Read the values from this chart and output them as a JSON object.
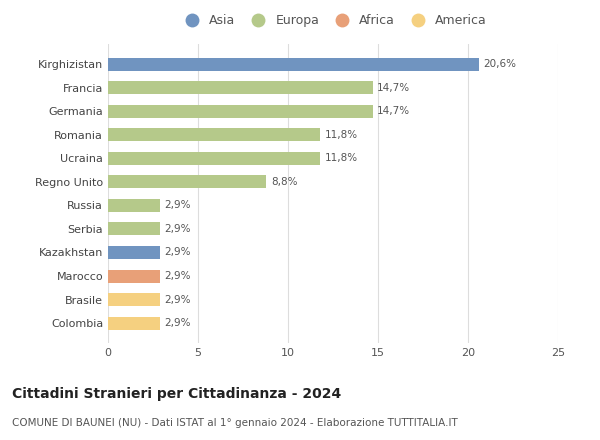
{
  "countries": [
    "Kirghizistan",
    "Francia",
    "Germania",
    "Romania",
    "Ucraina",
    "Regno Unito",
    "Russia",
    "Serbia",
    "Kazakhstan",
    "Marocco",
    "Brasile",
    "Colombia"
  ],
  "values": [
    20.6,
    14.7,
    14.7,
    11.8,
    11.8,
    8.8,
    2.9,
    2.9,
    2.9,
    2.9,
    2.9,
    2.9
  ],
  "labels": [
    "20,6%",
    "14,7%",
    "14,7%",
    "11,8%",
    "11,8%",
    "8,8%",
    "2,9%",
    "2,9%",
    "2,9%",
    "2,9%",
    "2,9%",
    "2,9%"
  ],
  "continents": [
    "Asia",
    "Europa",
    "Europa",
    "Europa",
    "Europa",
    "Europa",
    "Europa",
    "Europa",
    "Asia",
    "Africa",
    "America",
    "America"
  ],
  "colors": {
    "Asia": "#7094c0",
    "Europa": "#b5c98a",
    "Africa": "#e8a078",
    "America": "#f5d080"
  },
  "legend_order": [
    "Asia",
    "Europa",
    "Africa",
    "America"
  ],
  "title": "Cittadini Stranieri per Cittadinanza - 2024",
  "subtitle": "COMUNE DI BAUNEI (NU) - Dati ISTAT al 1° gennaio 2024 - Elaborazione TUTTITALIA.IT",
  "xlim": [
    0,
    25
  ],
  "xticks": [
    0,
    5,
    10,
    15,
    20,
    25
  ],
  "bg_color": "#ffffff",
  "grid_color": "#dddddd",
  "bar_height": 0.55,
  "title_fontsize": 10,
  "subtitle_fontsize": 7.5,
  "label_fontsize": 7.5,
  "tick_fontsize": 8,
  "legend_fontsize": 9
}
